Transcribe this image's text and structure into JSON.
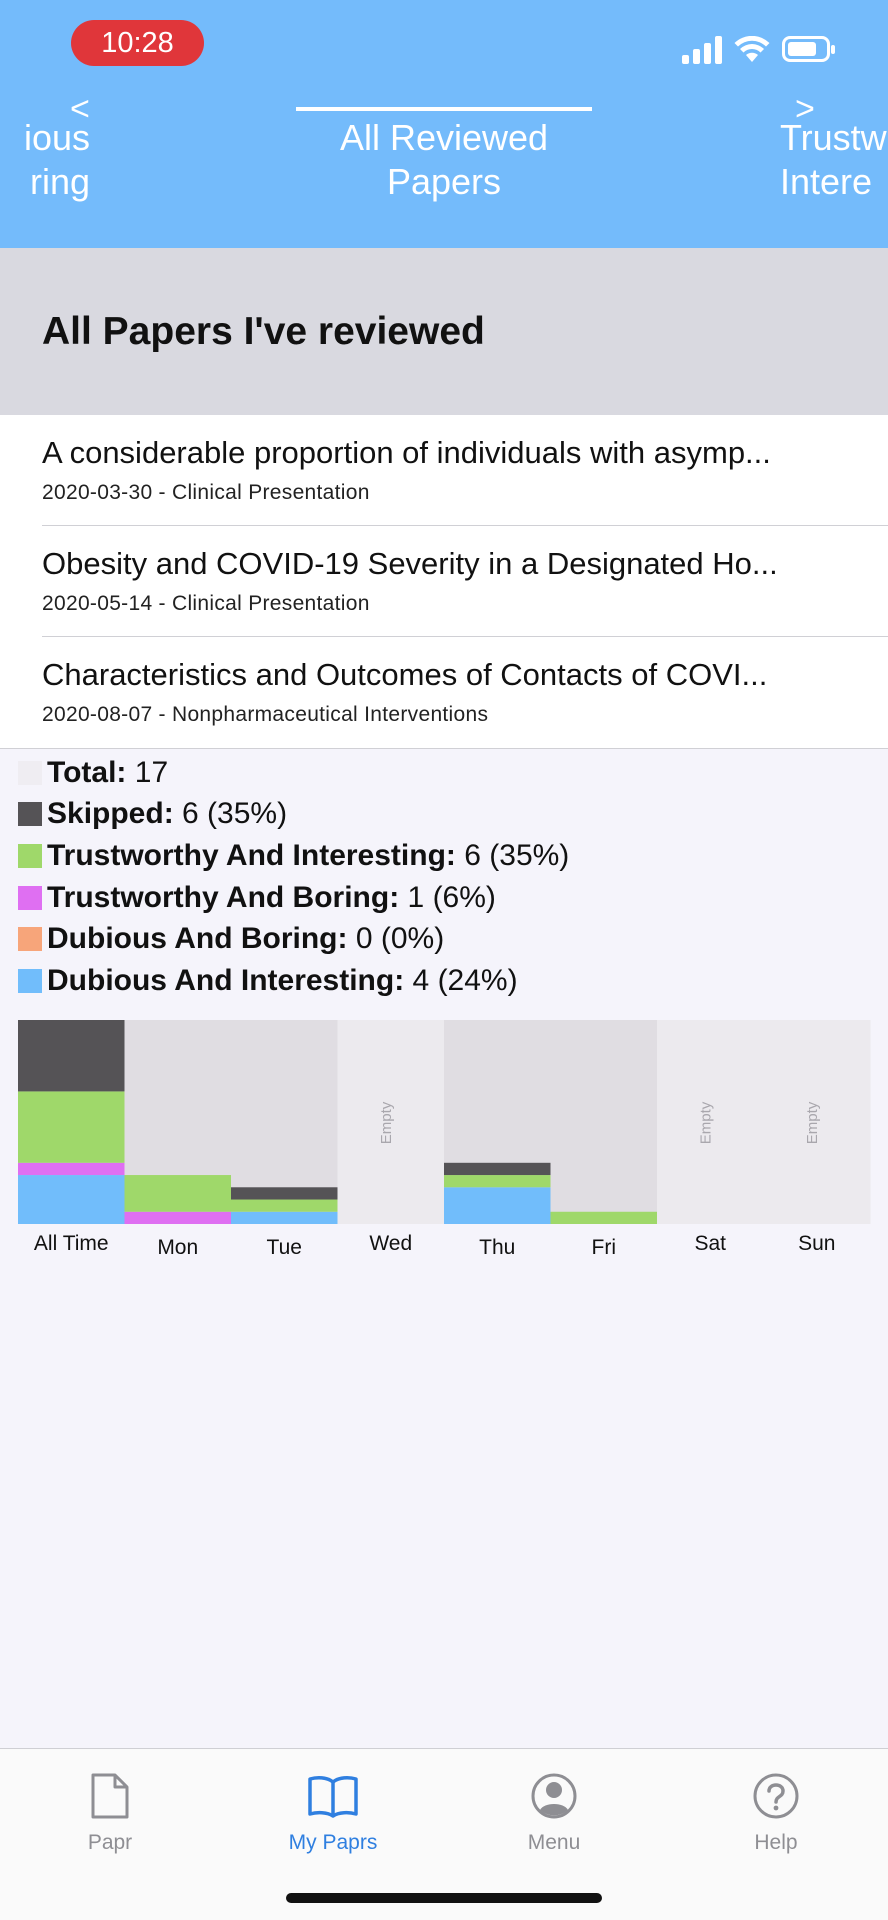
{
  "status_bar": {
    "time": "10:28"
  },
  "header": {
    "left_tab": {
      "line1": "ious",
      "line2": "ring"
    },
    "center_tab": {
      "line1": "All Reviewed",
      "line2": "Papers"
    },
    "right_tab": {
      "line1": "Trustw",
      "line2": "Intere"
    },
    "left_chevron": "<",
    "right_chevron": ">"
  },
  "section": {
    "title": "All Papers I've reviewed"
  },
  "papers": [
    {
      "title": "A considerable proportion of individuals with asymp...",
      "meta": "2020-03-30 - Clinical Presentation"
    },
    {
      "title": "Obesity and COVID-19 Severity in a Designated Ho...",
      "meta": "2020-05-14 - Clinical Presentation"
    },
    {
      "title": "Characteristics and Outcomes of Contacts of COVI...",
      "meta": "2020-08-07 - Nonpharmaceutical Interventions"
    }
  ],
  "stats": [
    {
      "label": "Total:",
      "value": "17",
      "color": "#efedf2"
    },
    {
      "label": "Skipped:",
      "value": "6 (35%)",
      "color": "#555356"
    },
    {
      "label": "Trustworthy And Interesting:",
      "value": "6 (35%)",
      "color": "#9fd86a"
    },
    {
      "label": "Trustworthy And Boring:",
      "value": "1 (6%)",
      "color": "#df6ff2"
    },
    {
      "label": "Dubious And Boring:",
      "value": "0 (0%)",
      "color": "#f7a57a"
    },
    {
      "label": "Dubious And Interesting:",
      "value": "4 (24%)",
      "color": "#71bdfb"
    }
  ],
  "chart_data": {
    "type": "bar",
    "categories": [
      "All Time",
      "Mon",
      "Tue",
      "Wed",
      "Thu",
      "Fri",
      "Sat",
      "Sun"
    ],
    "empty_label": "Empty",
    "empty_color": "#e0dde2",
    "series": [
      {
        "name": "Dubious And Interesting",
        "color": "#71bdfb",
        "values": [
          0.24,
          0.0,
          0.06,
          0,
          0.18,
          0.0,
          0,
          0
        ]
      },
      {
        "name": "Dubious And Boring",
        "color": "#f7a57a",
        "values": [
          0,
          0,
          0,
          0,
          0,
          0,
          0,
          0
        ]
      },
      {
        "name": "Trustworthy And Boring",
        "color": "#df6ff2",
        "values": [
          0.06,
          0.06,
          0.0,
          0,
          0.0,
          0.0,
          0,
          0
        ]
      },
      {
        "name": "Trustworthy And Interesting",
        "color": "#9fd86a",
        "values": [
          0.35,
          0.18,
          0.06,
          0,
          0.06,
          0.06,
          0,
          0
        ]
      },
      {
        "name": "Skipped",
        "color": "#555356",
        "values": [
          0.35,
          0.0,
          0.06,
          0,
          0.06,
          0.0,
          0,
          0
        ]
      }
    ],
    "empty_days": [
      "Wed",
      "Sat",
      "Sun"
    ]
  },
  "tabbar": {
    "items": [
      {
        "label": "Papr",
        "icon": "document-icon"
      },
      {
        "label": "My Paprs",
        "icon": "book-icon"
      },
      {
        "label": "Menu",
        "icon": "person-circle-icon"
      },
      {
        "label": "Help",
        "icon": "question-circle-icon"
      }
    ]
  }
}
